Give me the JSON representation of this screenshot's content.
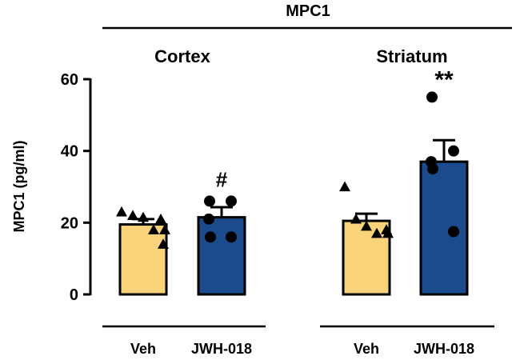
{
  "chart_data": {
    "type": "bar",
    "title": "MPC1",
    "ylabel": "MPC1 (pg/ml)",
    "ylim": [
      0,
      60
    ],
    "yticks": [
      0,
      20,
      40,
      60
    ],
    "colors": {
      "Veh": "#f8d37a",
      "JWH-018": "#1b4b8c"
    },
    "groups": [
      {
        "name": "Cortex",
        "bars": [
          {
            "label": "Veh",
            "mean": 19.5,
            "sem": 1.5,
            "marker": "triangle",
            "points": [
              23,
              22,
              21.5,
              18,
              14,
              18,
              21
            ]
          },
          {
            "label": "JWH-018",
            "mean": 21.5,
            "sem": 2.8,
            "marker": "circle",
            "annotation": "#",
            "points": [
              26,
              26,
              21,
              16,
              16
            ]
          }
        ]
      },
      {
        "name": "Striatum",
        "bars": [
          {
            "label": "Veh",
            "mean": 20.5,
            "sem": 2.0,
            "marker": "triangle",
            "points": [
              30,
              21,
              19,
              17,
              18,
              17
            ]
          },
          {
            "label": "JWH-018",
            "mean": 37,
            "sem": 6,
            "marker": "circle",
            "annotation": "**",
            "points": [
              55,
              40,
              37,
              35,
              17.5
            ]
          }
        ]
      }
    ]
  }
}
